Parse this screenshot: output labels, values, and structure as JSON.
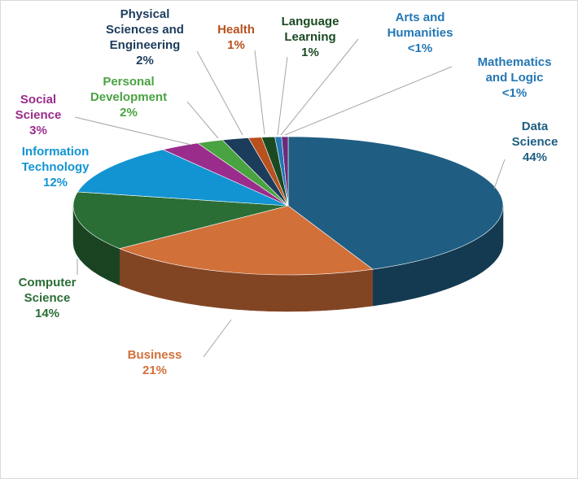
{
  "chart_data": {
    "type": "pie",
    "style": "3d",
    "title": "",
    "slices": [
      {
        "label_lines": [
          "Data",
          "Science"
        ],
        "pct_label": "44%",
        "value": 44,
        "color": "#1f5e82"
      },
      {
        "label_lines": [
          "Business"
        ],
        "pct_label": "21%",
        "value": 21,
        "color": "#d2703a"
      },
      {
        "label_lines": [
          "Computer",
          "Science"
        ],
        "pct_label": "14%",
        "value": 14,
        "color": "#2a6e36"
      },
      {
        "label_lines": [
          "Information",
          "Technology"
        ],
        "pct_label": "12%",
        "value": 12,
        "color": "#1294d2"
      },
      {
        "label_lines": [
          "Social",
          "Science"
        ],
        "pct_label": "3%",
        "value": 3,
        "color": "#9a2c8c"
      },
      {
        "label_lines": [
          "Personal",
          "Development"
        ],
        "pct_label": "2%",
        "value": 2,
        "color": "#4aa341"
      },
      {
        "label_lines": [
          "Physical",
          "Sciences and",
          "Engineering"
        ],
        "pct_label": "2%",
        "value": 2,
        "color": "#1c3c5c"
      },
      {
        "label_lines": [
          "Health"
        ],
        "pct_label": "1%",
        "value": 1,
        "color": "#b8511e"
      },
      {
        "label_lines": [
          "Language",
          "Learning"
        ],
        "pct_label": "1%",
        "value": 1,
        "color": "#1a4a22"
      },
      {
        "label_lines": [
          "Arts and",
          "Humanities"
        ],
        "pct_label": "<1%",
        "value": 0.5,
        "color": "#2477b5"
      },
      {
        "label_lines": [
          "Mathematics",
          "and Logic"
        ],
        "pct_label": "<1%",
        "value": 0.5,
        "color": "#6a2a7a"
      }
    ]
  }
}
